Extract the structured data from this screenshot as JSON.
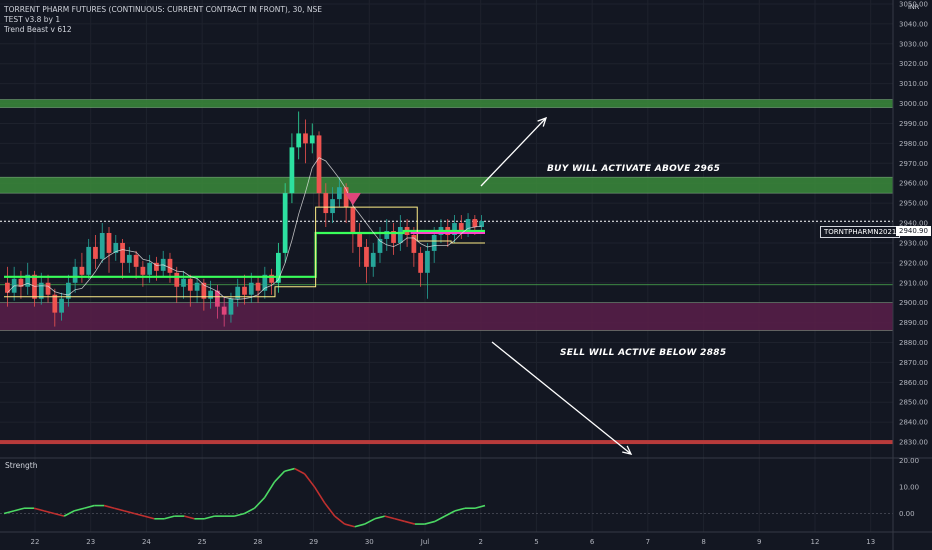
{
  "header": {
    "title": "TORRENT PHARM FUTURES (CONTINUOUS: CURRENT CONTRACT IN FRONT), 30, NSE",
    "indicators": [
      "TEST v3.8 by 1",
      "Trend Beast v 612"
    ]
  },
  "currency": "INR",
  "annotations": {
    "buy": "BUY WILL ACTIVATE ABOVE 2965",
    "sell": "SELL WILL ACTIVE BELOW  2885"
  },
  "price_badge": {
    "symbol": "TORNTPHARMN2021",
    "price": "2940.90"
  },
  "lower_pane": {
    "title": "Strength"
  },
  "colors": {
    "background": "#131722",
    "up": "#26a69a",
    "up_bright": "#2de0a0",
    "down": "#ef5350",
    "down_pink": "#e0457b",
    "green_line": "#39ff5a",
    "yellow_line": "#ffee88",
    "magenta_line": "#ff44cc",
    "resistance_zone": "#3b8b3b",
    "support_zone": "#5a1f4a",
    "bottom_line": "#b83b3b"
  },
  "chart_data": [
    {
      "type": "candlestick",
      "y_axis": {
        "range": [
          2822,
          3052
        ],
        "ticks": [
          "3050.00",
          "3040.00",
          "3030.00",
          "3020.00",
          "3010.00",
          "3000.00",
          "2990.00",
          "2980.00",
          "2970.00",
          "2960.00",
          "2950.00",
          "2940.00",
          "2930.00",
          "2920.00",
          "2910.00",
          "2900.00",
          "2890.00",
          "2880.00",
          "2870.00",
          "2860.00",
          "2850.00",
          "2840.00",
          "2830.00"
        ],
        "unit": "INR"
      },
      "x_axis": {
        "labels": [
          "22",
          "23",
          "24",
          "25",
          "28",
          "29",
          "30",
          "Jul",
          "2",
          "5",
          "6",
          "7",
          "8",
          "9",
          "12",
          "13"
        ]
      },
      "zones": [
        {
          "name": "resistance-top",
          "from": 2998,
          "to": 3002
        },
        {
          "name": "resistance-mid",
          "from": 2955,
          "to": 2963
        },
        {
          "name": "support",
          "from": 2886,
          "to": 2900
        }
      ],
      "lines": [
        {
          "name": "bottom-red",
          "value": 2830
        },
        {
          "name": "thin-green",
          "value": 2909
        },
        {
          "name": "current-price",
          "value": 2940.9
        }
      ],
      "candles": [
        [
          2910,
          2905,
          2918,
          2898
        ],
        [
          2905,
          2912,
          2918,
          2901
        ],
        [
          2912,
          2908,
          2916,
          2902
        ],
        [
          2908,
          2914,
          2920,
          2904
        ],
        [
          2914,
          2902,
          2916,
          2898
        ],
        [
          2902,
          2910,
          2915,
          2899
        ],
        [
          2910,
          2904,
          2914,
          2900
        ],
        [
          2904,
          2895,
          2907,
          2888
        ],
        [
          2895,
          2902,
          2905,
          2891
        ],
        [
          2902,
          2910,
          2914,
          2898
        ],
        [
          2910,
          2918,
          2922,
          2905
        ],
        [
          2918,
          2914,
          2925,
          2910
        ],
        [
          2914,
          2928,
          2932,
          2912
        ],
        [
          2928,
          2922,
          2934,
          2917
        ],
        [
          2922,
          2935,
          2940,
          2920
        ],
        [
          2935,
          2925,
          2938,
          2915
        ],
        [
          2925,
          2930,
          2934,
          2921
        ],
        [
          2930,
          2920,
          2932,
          2912
        ],
        [
          2920,
          2924,
          2928,
          2915
        ],
        [
          2924,
          2918,
          2926,
          2912
        ],
        [
          2918,
          2914,
          2921,
          2908
        ],
        [
          2914,
          2920,
          2924,
          2910
        ],
        [
          2920,
          2916,
          2923,
          2911
        ],
        [
          2916,
          2922,
          2926,
          2913
        ],
        [
          2922,
          2915,
          2925,
          2910
        ],
        [
          2915,
          2908,
          2918,
          2900
        ],
        [
          2908,
          2912,
          2916,
          2902
        ],
        [
          2912,
          2906,
          2914,
          2898
        ],
        [
          2906,
          2910,
          2913,
          2900
        ],
        [
          2910,
          2902,
          2912,
          2896
        ],
        [
          2902,
          2906,
          2911,
          2897
        ],
        [
          2906,
          2898,
          2909,
          2892
        ],
        [
          2898,
          2894,
          2903,
          2888
        ],
        [
          2894,
          2902,
          2905,
          2890
        ],
        [
          2902,
          2908,
          2912,
          2898
        ],
        [
          2908,
          2904,
          2914,
          2899
        ],
        [
          2904,
          2910,
          2915,
          2900
        ],
        [
          2910,
          2906,
          2913,
          2900
        ],
        [
          2906,
          2914,
          2918,
          2902
        ],
        [
          2914,
          2910,
          2917,
          2904
        ],
        [
          2910,
          2925,
          2930,
          2905
        ],
        [
          2925,
          2955,
          2960,
          2920
        ],
        [
          2955,
          2978,
          2985,
          2950
        ],
        [
          2978,
          2985,
          2996,
          2972
        ],
        [
          2985,
          2980,
          2992,
          2970
        ],
        [
          2980,
          2984,
          2990,
          2975
        ],
        [
          2984,
          2955,
          2986,
          2948
        ],
        [
          2955,
          2945,
          2960,
          2938
        ],
        [
          2945,
          2952,
          2958,
          2940
        ],
        [
          2952,
          2958,
          2963,
          2948
        ],
        [
          2958,
          2948,
          2960,
          2940
        ],
        [
          2948,
          2935,
          2952,
          2925
        ],
        [
          2935,
          2928,
          2940,
          2918
        ],
        [
          2928,
          2918,
          2932,
          2910
        ],
        [
          2918,
          2925,
          2930,
          2913
        ],
        [
          2925,
          2932,
          2938,
          2920
        ],
        [
          2932,
          2936,
          2942,
          2926
        ],
        [
          2936,
          2930,
          2940,
          2924
        ],
        [
          2930,
          2938,
          2944,
          2926
        ],
        [
          2938,
          2934,
          2942,
          2928
        ],
        [
          2934,
          2925,
          2938,
          2918
        ],
        [
          2925,
          2915,
          2928,
          2908
        ],
        [
          2915,
          2926,
          2930,
          2902
        ],
        [
          2926,
          2934,
          2938,
          2920
        ],
        [
          2934,
          2938,
          2942,
          2930
        ],
        [
          2938,
          2934,
          2942,
          2928
        ],
        [
          2934,
          2940,
          2944,
          2930
        ],
        [
          2940,
          2936,
          2944,
          2932
        ],
        [
          2936,
          2942,
          2945,
          2933
        ],
        [
          2942,
          2938,
          2944,
          2934
        ],
        [
          2938,
          2941,
          2944,
          2935
        ]
      ]
    },
    {
      "type": "line",
      "name": "Strength",
      "y_axis": {
        "range": [
          -7,
          21
        ],
        "ticks": [
          "20.00",
          "10.00",
          "0.00"
        ]
      },
      "values": [
        0,
        1,
        2,
        2,
        1,
        0,
        -1,
        1,
        2,
        3,
        3,
        2,
        1,
        0,
        -1,
        -2,
        -2,
        -1,
        -1,
        -2,
        -2,
        -1,
        -1,
        -1,
        0,
        2,
        6,
        12,
        16,
        17,
        15,
        10,
        4,
        -1,
        -4,
        -5,
        -4,
        -2,
        -1,
        -2,
        -3,
        -4,
        -4,
        -3,
        -1,
        1,
        2,
        2,
        3
      ]
    }
  ]
}
